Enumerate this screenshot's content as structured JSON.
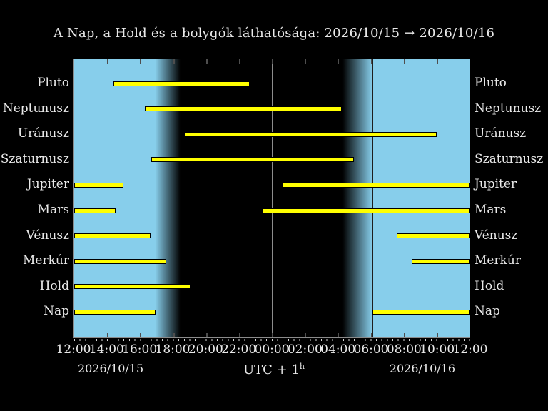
{
  "title": "A Nap, a Hold és a bolygók láthatósága: 2026/10/15 → 2026/10/16",
  "footer": {
    "left_date": "2026/10/15",
    "right_date": "2026/10/16",
    "tz_label": "UTC + 1",
    "tz_sup": "h"
  },
  "chart_data": {
    "type": "bar",
    "subtype": "horizontal-visibility-gantt",
    "title": "A Nap, a Hold és a bolygók láthatósága: 2026/10/15 → 2026/10/16",
    "x_axis": {
      "tick_labels": [
        "12:00",
        "14:00",
        "16:00",
        "18:00",
        "20:00",
        "22:00",
        "00:00",
        "02:00",
        "04:00",
        "06:00",
        "08:00",
        "10:00",
        "12:00"
      ],
      "hours_span": 24,
      "major_tick_hours": 2,
      "minor_tick_minutes": 20,
      "note": "hours measured from 12:00 local (UTC+1) on 2026/10/15"
    },
    "rows": [
      {
        "id": "pluto",
        "label": "Pluto",
        "segments": [
          {
            "start": 2.4,
            "end": 10.65
          }
        ]
      },
      {
        "id": "neptunusz",
        "label": "Neptunusz",
        "segments": [
          {
            "start": 4.3,
            "end": 16.25
          }
        ]
      },
      {
        "id": "uranusz",
        "label": "Uránusz",
        "segments": [
          {
            "start": 6.65,
            "end": 22.0
          }
        ]
      },
      {
        "id": "szaturnusz",
        "label": "Szaturnusz",
        "segments": [
          {
            "start": 4.7,
            "end": 17.0
          }
        ]
      },
      {
        "id": "jupiter",
        "label": "Jupiter",
        "segments": [
          {
            "start": 0,
            "end": 3.0
          },
          {
            "start": 12.6,
            "end": 24
          }
        ]
      },
      {
        "id": "mars",
        "label": "Mars",
        "segments": [
          {
            "start": 0,
            "end": 2.5
          },
          {
            "start": 11.45,
            "end": 24
          }
        ]
      },
      {
        "id": "venusz",
        "label": "Vénusz",
        "segments": [
          {
            "start": 0,
            "end": 4.65
          },
          {
            "start": 19.6,
            "end": 24
          }
        ]
      },
      {
        "id": "merkur",
        "label": "Merkúr",
        "segments": [
          {
            "start": 0,
            "end": 5.6
          },
          {
            "start": 20.5,
            "end": 24
          }
        ]
      },
      {
        "id": "hold",
        "label": "Hold",
        "segments": [
          {
            "start": 0,
            "end": 7.05
          }
        ]
      },
      {
        "id": "nap",
        "label": "Nap",
        "segments": [
          {
            "start": 0,
            "end": 4.92
          },
          {
            "start": 18.1,
            "end": 24
          }
        ]
      }
    ],
    "day_night": {
      "sunset": 4.92,
      "dusk_end": 6.45,
      "dawn_start": 16.3,
      "sunrise": 18.1,
      "midnight": 12
    },
    "colors": {
      "day": "#87ceeb",
      "night": "#000000",
      "bar": "#ffff00",
      "bar_outline": "#000000",
      "midnight_line": "#8c8c8c",
      "twilight_line": "#1e1e1e",
      "border": "#8a8a8a",
      "text": "#e9e9e9"
    },
    "legend": "off",
    "grid": "off"
  }
}
